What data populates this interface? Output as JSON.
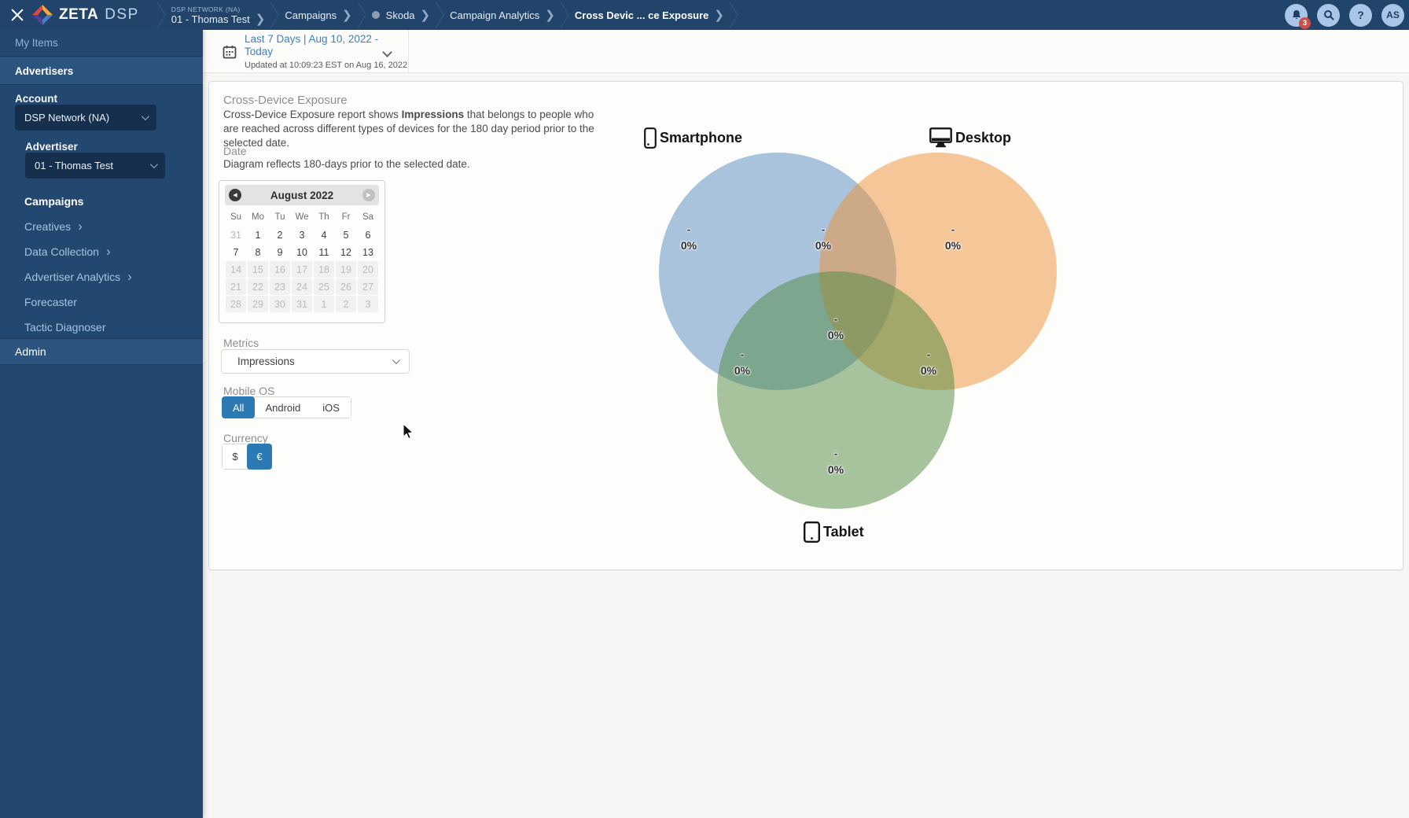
{
  "topbar": {
    "brand": {
      "zeta": "ZETA",
      "dsp": "DSP"
    },
    "breadcrumbs": [
      {
        "eyebrow": "DSP NETWORK (NA)",
        "label": "01 - Thomas Test"
      },
      {
        "label": "Campaigns"
      },
      {
        "label": "Skoda",
        "dot": true
      },
      {
        "label": "Campaign Analytics"
      },
      {
        "label": "Cross Devic ... ce Exposure",
        "current": true
      }
    ],
    "notification_count": "3",
    "avatar_initials": "AS"
  },
  "sidebar": {
    "my_items": "My Items",
    "advertisers": "Advertisers",
    "account_label": "Account",
    "account_value": "DSP Network (NA)",
    "advertiser_label": "Advertiser",
    "advertiser_value": "01 - Thomas Test",
    "nav": [
      {
        "label": "Campaigns",
        "active": true
      },
      {
        "label": "Creatives",
        "arrow": true
      },
      {
        "label": "Data Collection",
        "arrow": true
      },
      {
        "label": "Advertiser Analytics",
        "arrow": true
      },
      {
        "label": "Forecaster"
      },
      {
        "label": "Tactic Diagnoser"
      }
    ],
    "admin": "Admin"
  },
  "datebar": {
    "range": "Last 7 Days | Aug 10, 2022 - Today",
    "updated": "Updated at 10:09:23 EST on Aug 16, 2022"
  },
  "panel": {
    "title": "Cross-Device Exposure",
    "desc_pre": "Cross-Device Exposure report shows ",
    "desc_bold": "Impressions",
    "desc_post": " that belongs to people who are reached across different types of devices for the 180 day period prior to the selected date.",
    "date_title": "Date",
    "date_desc": "Diagram reflects 180-days prior to the selected date.",
    "metrics_label": "Metrics",
    "metrics_value": "Impressions",
    "mobile_os_label": "Mobile OS",
    "os_options": [
      {
        "label": "All",
        "selected": true
      },
      {
        "label": "Android",
        "selected": false
      },
      {
        "label": "iOS",
        "selected": false
      }
    ],
    "currency_label": "Currency",
    "currency_options": [
      {
        "label": "$",
        "selected": false
      },
      {
        "label": "€",
        "selected": true
      }
    ]
  },
  "calendar": {
    "month": "August 2022",
    "days": [
      "Su",
      "Mo",
      "Tu",
      "We",
      "Th",
      "Fr",
      "Sa"
    ],
    "weeks": [
      [
        {
          "d": "31",
          "s": "muted"
        },
        {
          "d": "1",
          "s": "normal"
        },
        {
          "d": "2",
          "s": "normal"
        },
        {
          "d": "3",
          "s": "normal"
        },
        {
          "d": "4",
          "s": "normal"
        },
        {
          "d": "5",
          "s": "normal"
        },
        {
          "d": "6",
          "s": "normal"
        }
      ],
      [
        {
          "d": "7",
          "s": "normal"
        },
        {
          "d": "8",
          "s": "normal"
        },
        {
          "d": "9",
          "s": "normal"
        },
        {
          "d": "10",
          "s": "normal"
        },
        {
          "d": "11",
          "s": "normal"
        },
        {
          "d": "12",
          "s": "normal"
        },
        {
          "d": "13",
          "s": "normal"
        }
      ],
      [
        {
          "d": "14",
          "s": "disabled"
        },
        {
          "d": "15",
          "s": "disabled"
        },
        {
          "d": "16",
          "s": "disabled"
        },
        {
          "d": "17",
          "s": "disabled"
        },
        {
          "d": "18",
          "s": "disabled"
        },
        {
          "d": "19",
          "s": "disabled"
        },
        {
          "d": "20",
          "s": "disabled"
        }
      ],
      [
        {
          "d": "21",
          "s": "disabled"
        },
        {
          "d": "22",
          "s": "disabled"
        },
        {
          "d": "23",
          "s": "disabled"
        },
        {
          "d": "24",
          "s": "disabled"
        },
        {
          "d": "25",
          "s": "disabled"
        },
        {
          "d": "26",
          "s": "disabled"
        },
        {
          "d": "27",
          "s": "disabled"
        }
      ],
      [
        {
          "d": "28",
          "s": "disabled"
        },
        {
          "d": "29",
          "s": "disabled"
        },
        {
          "d": "30",
          "s": "disabled"
        },
        {
          "d": "31",
          "s": "disabled"
        },
        {
          "d": "1",
          "s": "disabled"
        },
        {
          "d": "2",
          "s": "disabled"
        },
        {
          "d": "3",
          "s": "disabled"
        }
      ]
    ]
  },
  "chart_data": {
    "type": "venn",
    "title": "Cross-Device Exposure",
    "metric": "Impressions",
    "dash": "-",
    "devices": [
      "Smartphone",
      "Desktop",
      "Tablet"
    ],
    "sets": [
      {
        "name": "Smartphone",
        "value": "0%"
      },
      {
        "name": "Desktop",
        "value": "0%"
      },
      {
        "name": "Tablet",
        "value": "0%"
      },
      {
        "name": "Smartphone ∩ Desktop",
        "value": "0%"
      },
      {
        "name": "Smartphone ∩ Tablet",
        "value": "0%"
      },
      {
        "name": "Desktop ∩ Tablet",
        "value": "0%"
      },
      {
        "name": "Smartphone ∩ Desktop ∩ Tablet",
        "value": "0%"
      }
    ],
    "colors": {
      "smartphone": "#588ABE",
      "desktop": "#EE9234",
      "tablet": "#508A40",
      "accent": "#2B7AB3",
      "link": "#3F7EC0"
    }
  },
  "icons": [
    "close-icon",
    "zeta-logo",
    "bell-icon",
    "search-icon",
    "help-icon",
    "calendar-icon",
    "chevron-down-icon",
    "smartphone-icon",
    "desktop-icon",
    "tablet-icon"
  ]
}
